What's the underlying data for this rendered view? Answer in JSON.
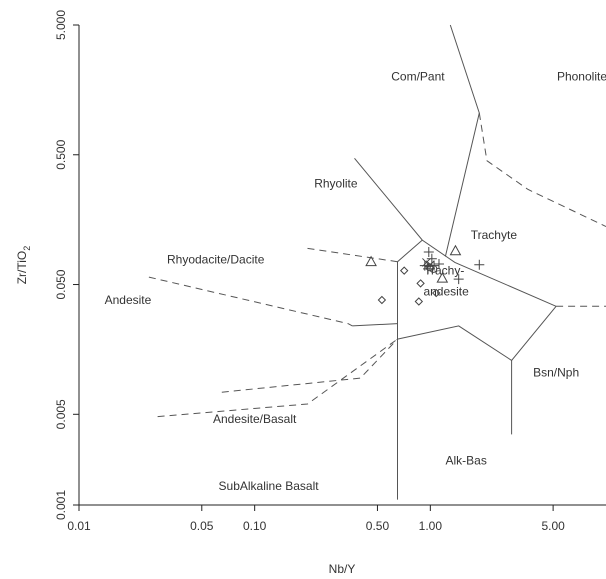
{
  "chart_data": {
    "type": "scatter",
    "xlabel": "Nb/Y",
    "ylabel": "Zr/TiO2",
    "x_scale": "log",
    "y_scale": "log",
    "xlim": [
      0.01,
      10
    ],
    "ylim": [
      0.001,
      5.0
    ],
    "x_ticks": [
      {
        "value": 0.01,
        "label": "0.01"
      },
      {
        "value": 0.05,
        "label": "0.05"
      },
      {
        "value": 0.1,
        "label": "0.10"
      },
      {
        "value": 0.5,
        "label": "0.50"
      },
      {
        "value": 1.0,
        "label": "1.00"
      },
      {
        "value": 5.0,
        "label": "5.00"
      }
    ],
    "y_ticks": [
      {
        "value": 0.001,
        "label": "0.001"
      },
      {
        "value": 0.005,
        "label": "0.005"
      },
      {
        "value": 0.05,
        "label": "0.050"
      },
      {
        "value": 0.5,
        "label": "0.500"
      },
      {
        "value": 5.0,
        "label": "5.000"
      }
    ],
    "grid": false,
    "field_labels": [
      {
        "text": "Com/Pant",
        "x": 0.85,
        "y": 2.0
      },
      {
        "text": "Phonolite",
        "x": 7.3,
        "y": 2.0
      },
      {
        "text": "Rhyolite",
        "x": 0.29,
        "y": 0.3
      },
      {
        "text": "Trachyte",
        "x": 2.3,
        "y": 0.12
      },
      {
        "text": "Rhyodacite/Dacite",
        "x": 0.06,
        "y": 0.078
      },
      {
        "text": "Andesite",
        "x": 0.019,
        "y": 0.038
      },
      {
        "text": "Trachy-",
        "x": 1.2,
        "y": 0.064
      },
      {
        "text": "andesite",
        "x": 1.23,
        "y": 0.044
      },
      {
        "text": "Bsn/Nph",
        "x": 5.2,
        "y": 0.0105
      },
      {
        "text": "Andesite/Basalt",
        "x": 0.1,
        "y": 0.0046
      },
      {
        "text": "Alk-Bas",
        "x": 1.6,
        "y": 0.0022
      },
      {
        "text": "SubAlkaline Basalt",
        "x": 0.12,
        "y": 0.0014
      }
    ],
    "boundaries": [
      {
        "style": "solid",
        "points": [
          [
            1.3,
            5.0
          ],
          [
            1.9,
            1.05
          ],
          [
            1.22,
            0.083
          ],
          [
            0.9,
            0.11
          ],
          [
            0.37,
            0.47
          ]
        ]
      },
      {
        "style": "solid",
        "points": [
          [
            1.22,
            0.083
          ],
          [
            1.38,
            0.074
          ],
          [
            5.2,
            0.034
          ]
        ]
      },
      {
        "style": "solid",
        "points": [
          [
            0.9,
            0.11
          ],
          [
            0.65,
            0.075
          ],
          [
            0.65,
            0.0011
          ]
        ]
      },
      {
        "style": "solid",
        "points": [
          [
            0.65,
            0.019
          ],
          [
            1.45,
            0.024
          ],
          [
            2.9,
            0.013
          ],
          [
            5.2,
            0.034
          ]
        ]
      },
      {
        "style": "solid",
        "points": [
          [
            2.9,
            0.013
          ],
          [
            2.9,
            0.0035
          ]
        ]
      },
      {
        "style": "solid",
        "points": [
          [
            0.36,
            0.024
          ],
          [
            0.65,
            0.025
          ]
        ]
      },
      {
        "style": "dashed",
        "points": [
          [
            1.9,
            1.05
          ],
          [
            2.1,
            0.45
          ],
          [
            3.6,
            0.27
          ],
          [
            10,
            0.14
          ]
        ]
      },
      {
        "style": "dashed",
        "points": [
          [
            5.2,
            0.034
          ],
          [
            10,
            0.034
          ]
        ]
      },
      {
        "style": "dashed",
        "points": [
          [
            0.2,
            0.095
          ],
          [
            0.65,
            0.075
          ]
        ]
      },
      {
        "style": "dashed",
        "points": [
          [
            0.025,
            0.057
          ],
          [
            0.34,
            0.025
          ],
          [
            0.36,
            0.024
          ]
        ]
      },
      {
        "style": "dashed",
        "points": [
          [
            0.065,
            0.0074
          ],
          [
            0.4,
            0.0095
          ],
          [
            0.65,
            0.019
          ]
        ]
      },
      {
        "style": "dashed",
        "points": [
          [
            0.028,
            0.0048
          ],
          [
            0.2,
            0.006
          ],
          [
            0.65,
            0.019
          ]
        ]
      }
    ],
    "series": [
      {
        "marker": "diamond",
        "points": [
          [
            0.71,
            0.064
          ],
          [
            0.53,
            0.038
          ],
          [
            0.86,
            0.037
          ],
          [
            0.88,
            0.051
          ],
          [
            1.08,
            0.043
          ]
        ]
      },
      {
        "marker": "triangle",
        "points": [
          [
            0.46,
            0.075
          ],
          [
            1.39,
            0.091
          ],
          [
            1.17,
            0.056
          ]
        ]
      },
      {
        "marker": "plus",
        "points": [
          [
            0.98,
            0.089
          ],
          [
            0.93,
            0.07
          ],
          [
            0.97,
            0.066
          ],
          [
            1.02,
            0.079
          ],
          [
            1.05,
            0.07
          ],
          [
            1.12,
            0.072
          ],
          [
            1.9,
            0.071
          ],
          [
            1.45,
            0.055
          ]
        ]
      },
      {
        "marker": "x",
        "points": [
          [
            0.95,
            0.074
          ],
          [
            1.0,
            0.071
          ]
        ]
      },
      {
        "marker": "circle",
        "points": [
          [
            0.99,
            0.068
          ],
          [
            1.04,
            0.066
          ]
        ]
      }
    ]
  }
}
